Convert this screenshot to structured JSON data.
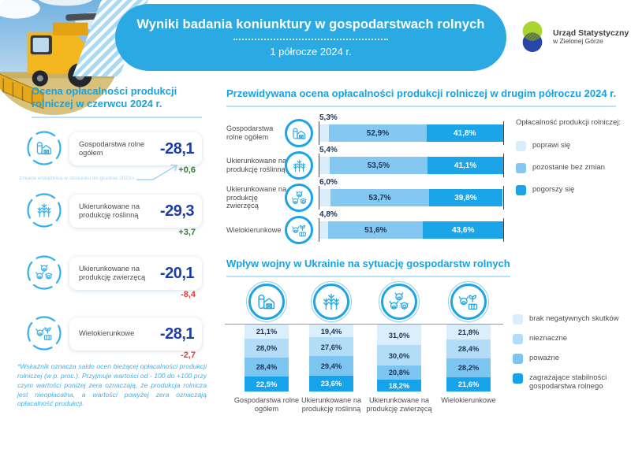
{
  "header": {
    "title": "Wyniki badania koniunktury w gospodarstwach rolnych",
    "subtitle": "1 półrocze 2024 r.",
    "logo_line1": "Urząd Statystyczny",
    "logo_line2": "w Zielonej Górze"
  },
  "colors": {
    "banner_blue": "#2aa9e2",
    "heading_blue": "#17a2e2",
    "value_blue": "#1d3ea6",
    "positive_green": "#2f7d32",
    "negative_red": "#e23b3b",
    "dark_label": "#1c3357",
    "forecast_segments": [
      "#d9edfb",
      "#84c8f2",
      "#1ba4e8"
    ],
    "war_segments": [
      "#daeefb",
      "#b3ddf7",
      "#7cc5f1",
      "#17a3ea"
    ]
  },
  "left_panel": {
    "heading": "Ocena opłacalności produkcji rolniczej w czerwcu 2024 r.",
    "change_annotation": "zmiana wskaźnika w stosunku do grudnia 2023 r.",
    "items": [
      {
        "icon": "barn-icon",
        "label": "Gospodarstwa rolne ogółem",
        "value": "-28,1",
        "change": "+0,6",
        "trend": "positive"
      },
      {
        "icon": "wheat-icon",
        "label": "Ukierunkowane na produkcję roślinną",
        "value": "-29,3",
        "change": "+3,7",
        "trend": "positive"
      },
      {
        "icon": "livestock-icon",
        "label": "Ukierunkowane na produkcję zwierzęcą",
        "value": "-20,1",
        "change": "-8,4",
        "trend": "negative"
      },
      {
        "icon": "mixed-farming-icon",
        "label": "Wielokierunkowe",
        "value": "-28,1",
        "change": "-2,7",
        "trend": "negative"
      }
    ],
    "footnote": "*Wskaźnik oznacza saldo ocen bieżącej opłacalności produkcji rolniczej (w p. proc.). Przyjmuje wartości od - 100 do +100 przy czym wartości poniżej zera oznaczają, że produkcja rolnicza jest nieopłacalna, a wartości powyżej zera oznaczają opłacalność produkcji."
  },
  "forecast": {
    "heading": "Przewidywana ocena opłacalności produkcji rolniczej w drugim półroczu 2024 r.",
    "legend_title": "Opłacalność produkcji rolniczej:",
    "legend": [
      {
        "label": "poprawi się",
        "color": "#d9edfb"
      },
      {
        "label": "pozostanie bez zmian",
        "color": "#84c8f2"
      },
      {
        "label": "pogorszy się",
        "color": "#1ba4e8"
      }
    ],
    "rows": [
      {
        "icon": "barn-icon",
        "label": "Gospodarstwa rolne ogółem",
        "values": [
          5.3,
          52.9,
          41.8
        ],
        "display": [
          "5,3%",
          "52,9%",
          "41,8%"
        ]
      },
      {
        "icon": "wheat-icon",
        "label": "Ukierunkowane na produkcję roślinną",
        "values": [
          5.4,
          53.5,
          41.1
        ],
        "display": [
          "5,4%",
          "53,5%",
          "41,1%"
        ]
      },
      {
        "icon": "livestock-icon",
        "label": "Ukierunkowane na produkcję zwierzęcą",
        "values": [
          6.0,
          53.7,
          39.8
        ],
        "display": [
          "6,0%",
          "53,7%",
          "39,8%"
        ]
      },
      {
        "icon": "mixed-farming-icon",
        "label": "Wielokierunkowe",
        "values": [
          4.8,
          51.6,
          43.6
        ],
        "display": [
          "4,8%",
          "51,6%",
          "43,6%"
        ]
      }
    ]
  },
  "war_impact": {
    "heading": "Wpływ wojny w Ukrainie na sytuację gospodarstw rolnych",
    "legend": [
      {
        "label": "brak negatywnych skutków",
        "color": "#daeefb"
      },
      {
        "label": "nieznaczne",
        "color": "#b3ddf7"
      },
      {
        "label": "poważne",
        "color": "#7cc5f1"
      },
      {
        "label": "zagrażające stabilności gospodarstwa rolnego",
        "color": "#17a3ea"
      }
    ],
    "columns": [
      {
        "icon": "barn-icon",
        "label": "Gospodarstwa rolne ogółem",
        "values": [
          21.1,
          28.0,
          28.4,
          22.5
        ],
        "display": [
          "21,1%",
          "28,0%",
          "28,4%",
          "22,5%"
        ]
      },
      {
        "icon": "wheat-icon",
        "label": "Ukierunkowane na produkcję roślinną",
        "values": [
          19.4,
          27.6,
          29.4,
          23.6
        ],
        "display": [
          "19,4%",
          "27,6%",
          "29,4%",
          "23,6%"
        ]
      },
      {
        "icon": "livestock-icon",
        "label": "Ukierunkowane na produkcję zwierzęcą",
        "values": [
          31.0,
          30.0,
          20.8,
          18.2
        ],
        "display": [
          "31,0%",
          "30,0%",
          "20,8%",
          "18,2%"
        ]
      },
      {
        "icon": "mixed-farming-icon",
        "label": "Wielokierunkowe",
        "values": [
          21.8,
          28.4,
          28.2,
          21.6
        ],
        "display": [
          "21,8%",
          "28,4%",
          "28,2%",
          "21,6%"
        ]
      }
    ]
  },
  "chart_data": [
    {
      "type": "bar",
      "orientation": "horizontal-stacked",
      "title": "Przewidywana ocena opłacalności produkcji rolniczej w drugim półroczu 2024 r.",
      "categories": [
        "Gospodarstwa rolne ogółem",
        "Ukierunkowane na produkcję roślinną",
        "Ukierunkowane na produkcję zwierzęcą",
        "Wielokierunkowe"
      ],
      "series": [
        {
          "name": "poprawi się",
          "values": [
            5.3,
            5.4,
            6.0,
            4.8
          ]
        },
        {
          "name": "pozostanie bez zmian",
          "values": [
            52.9,
            53.5,
            53.7,
            51.6
          ]
        },
        {
          "name": "pogorszy się",
          "values": [
            41.8,
            41.1,
            39.8,
            43.6
          ]
        }
      ],
      "unit": "%",
      "xlim": [
        0,
        100
      ],
      "grid": false,
      "legend_position": "right",
      "legend_title": "Opłacalność produkcji rolniczej:"
    },
    {
      "type": "bar",
      "orientation": "vertical-stacked",
      "title": "Wpływ wojny w Ukrainie na sytuację gospodarstw rolnych",
      "categories": [
        "Gospodarstwa rolne ogółem",
        "Ukierunkowane na produkcję roślinną",
        "Ukierunkowane na produkcję zwierzęcą",
        "Wielokierunkowe"
      ],
      "series": [
        {
          "name": "brak negatywnych skutków",
          "values": [
            21.1,
            19.4,
            31.0,
            21.8
          ]
        },
        {
          "name": "nieznaczne",
          "values": [
            28.0,
            27.6,
            30.0,
            28.4
          ]
        },
        {
          "name": "poważne",
          "values": [
            28.4,
            29.4,
            20.8,
            28.2
          ]
        },
        {
          "name": "zagrażające stabilności gospodarstwa rolnego",
          "values": [
            22.5,
            23.6,
            18.2,
            21.6
          ]
        }
      ],
      "unit": "%",
      "ylim": [
        0,
        100
      ],
      "grid": false,
      "legend_position": "right"
    }
  ]
}
